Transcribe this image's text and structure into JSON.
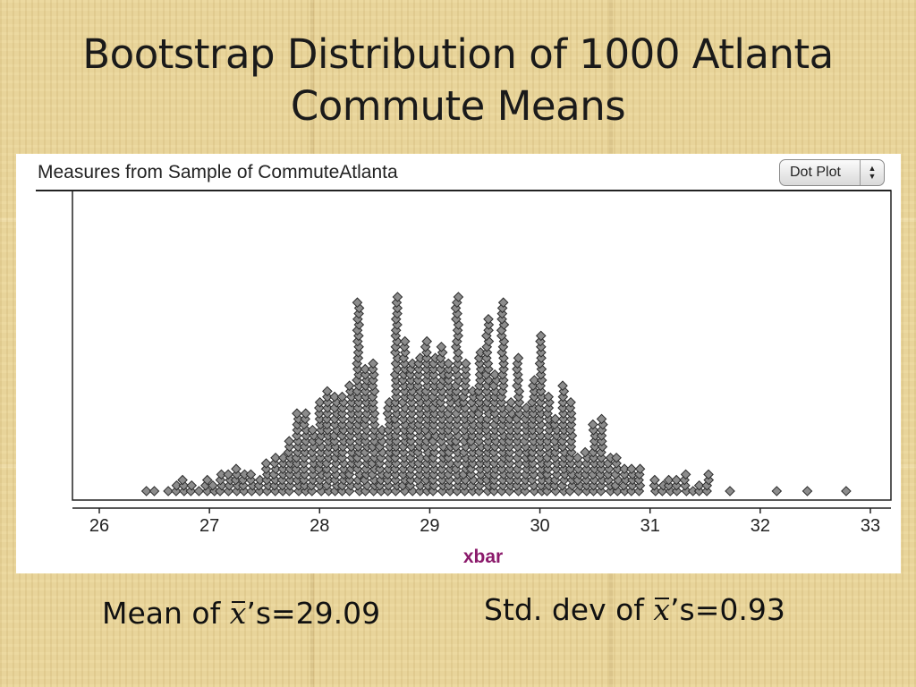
{
  "slide": {
    "title_line1": "Bootstrap Distribution of 1000 Atlanta",
    "title_line2": "Commute Means"
  },
  "panel": {
    "title": "Measures from Sample of CommuteAtlanta",
    "plot_type": "Dot Plot"
  },
  "stats": {
    "mean_prefix": "Mean of ",
    "mean_suffix": "’s=29.09",
    "sd_prefix": "Std. dev of ",
    "sd_suffix": "’s=0.93",
    "symbol": "x"
  },
  "colors": {
    "background": "#e8d49a",
    "dot_fill": "#8c8c8c",
    "dot_stroke": "#2b2b2b",
    "axis_label": "#8b1a6b"
  },
  "chart_data": {
    "type": "scatter",
    "plot_style": "dot-plot",
    "n": 1000,
    "mean": 29.09,
    "sd": 0.93,
    "xlabel": "xbar",
    "xlim": [
      25.8,
      33.1
    ],
    "ticks": [
      26,
      27,
      28,
      29,
      30,
      31,
      32,
      33
    ],
    "outliers": [
      26.45,
      26.5,
      31.75,
      32.15,
      32.45,
      32.75
    ],
    "grid": false
  }
}
